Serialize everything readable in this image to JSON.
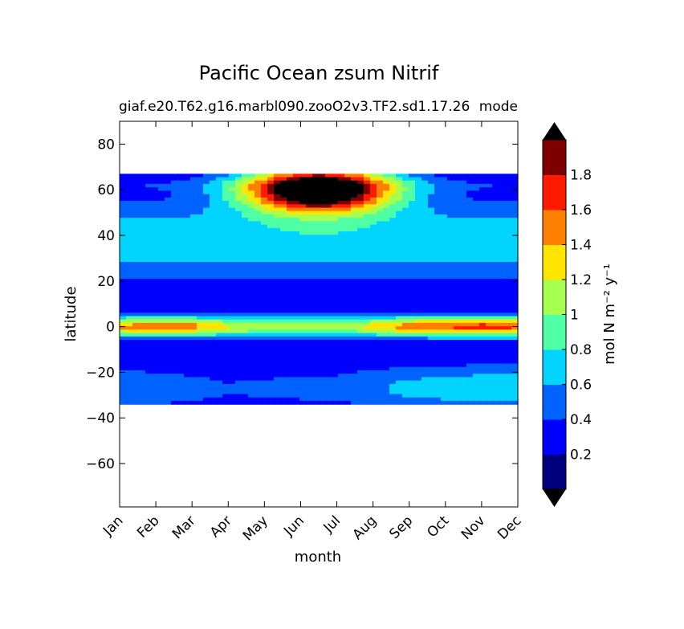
{
  "chart_data": {
    "type": "heatmap",
    "title": "Pacific Ocean zsum Nitrif",
    "subtitle_left": "giaf.e20.T62.g16.marbl090.zooO2v3.TF2.sd1.17.26",
    "subtitle_right": "mode",
    "xlabel": "month",
    "ylabel": "latitude",
    "x_tick_labels": [
      "Jan",
      "Feb",
      "Mar",
      "Apr",
      "May",
      "Jun",
      "Jul",
      "Aug",
      "Sep",
      "Oct",
      "Nov",
      "Dec"
    ],
    "y_ticks": [
      80,
      60,
      40,
      20,
      0,
      -20,
      -40,
      -60
    ],
    "y_tick_labels": [
      "80",
      "60",
      "40",
      "20",
      "0",
      "−20",
      "−40",
      "−60"
    ],
    "ylim": [
      -79,
      90
    ],
    "data_lat_range": [
      -34,
      67
    ],
    "colorbar": {
      "label": "mol N m⁻² y⁻¹",
      "levels": [
        0,
        0.2,
        0.4,
        0.6,
        0.8,
        1.0,
        1.2,
        1.4,
        1.6,
        1.8,
        2.0
      ],
      "tick_labels": [
        "0.2",
        "0.4",
        "0.6",
        "0.8",
        "1",
        "1.2",
        "1.4",
        "1.6",
        "1.8"
      ],
      "colors": [
        "#00007f",
        "#0000ff",
        "#0063ff",
        "#00d4ff",
        "#4effa6",
        "#a6ff4e",
        "#ffe500",
        "#ff7f00",
        "#ff1a00",
        "#7f0000"
      ],
      "under_color": "#000000",
      "over_color": "#000000",
      "extend": "both"
    },
    "field_features": {
      "north_max_lat": 60,
      "north_max_month": 5.5,
      "north_max_value": 2.3,
      "equatorial_values": [
        1.2,
        1.3,
        1.25,
        1.0,
        0.95,
        0.95,
        0.9,
        1.05,
        1.3,
        1.4,
        1.45,
        1.4
      ],
      "southern_values": [
        0.35,
        0.3,
        0.25,
        0.2,
        0.22,
        0.24,
        0.25,
        0.35,
        0.45,
        0.5,
        0.55,
        0.55
      ]
    }
  }
}
